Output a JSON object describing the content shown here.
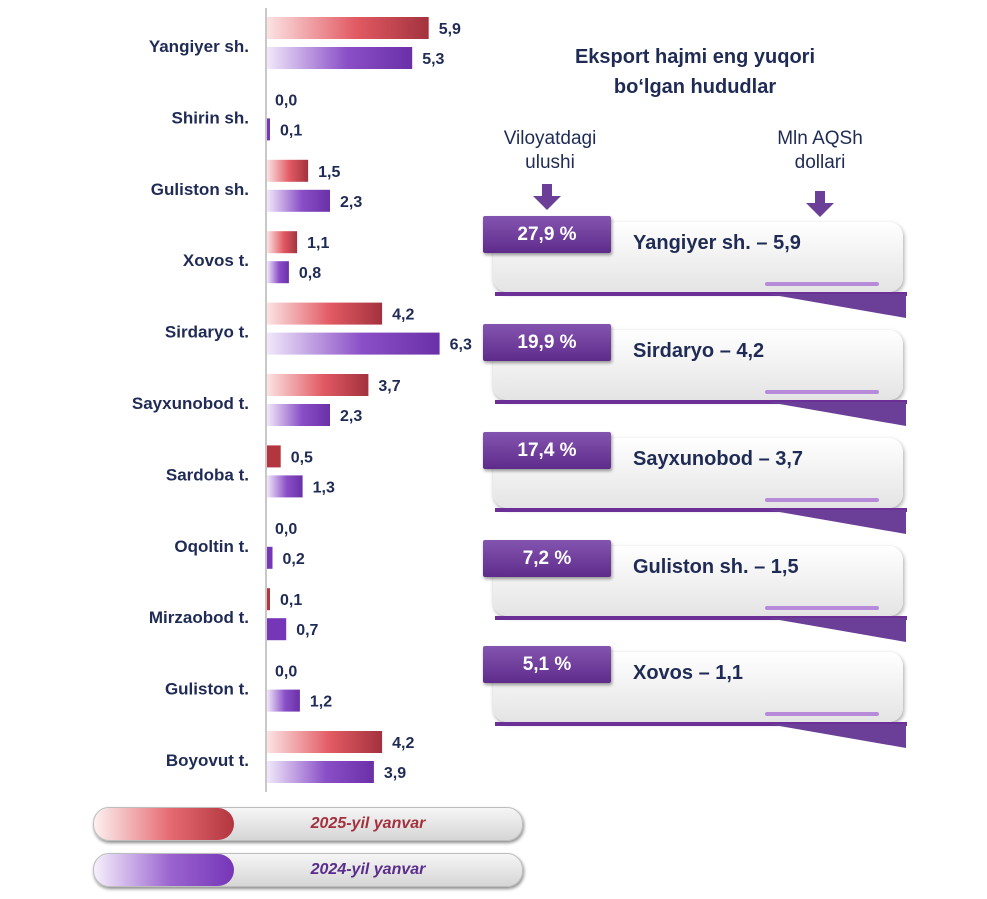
{
  "chart_data": {
    "type": "bar",
    "orientation": "horizontal",
    "categories": [
      "Yangiyer sh.",
      "Shirin sh.",
      "Guliston sh.",
      "Xovos t.",
      "Sirdaryo t.",
      "Sayxunobod t.",
      "Sardoba t.",
      "Oqoltin t.",
      "Mirzaobod t.",
      "Guliston t.",
      "Boyovut t."
    ],
    "series": [
      {
        "name": "2025-yil yanvar",
        "values": [
          5.9,
          0.0,
          1.5,
          1.1,
          4.2,
          3.7,
          0.5,
          0.0,
          0.1,
          0.0,
          4.2
        ],
        "labels": [
          "5,9",
          "0,0",
          "1,5",
          "1,1",
          "4,2",
          "3,7",
          "0,5",
          "0,0",
          "0,1",
          "0,0",
          "4,2"
        ]
      },
      {
        "name": "2024-yil yanvar",
        "values": [
          5.3,
          0.1,
          2.3,
          0.8,
          6.3,
          2.3,
          1.3,
          0.2,
          0.7,
          1.2,
          3.9
        ],
        "labels": [
          "5,3",
          "0,1",
          "2,3",
          "0,8",
          "6,3",
          "2,3",
          "1,3",
          "0,2",
          "0,7",
          "1,2",
          "3,9"
        ]
      }
    ],
    "colors": {
      "series_2025": "#c0394a",
      "series_2024": "#7a3ab8",
      "axis": "#c8c8c8"
    },
    "legend_placement": "bottom-left",
    "grid": false
  },
  "legend": [
    {
      "label": "2025-yil yanvar",
      "color": "#a3323e"
    },
    {
      "label": "2024-yil yanvar",
      "color": "#5a2d8c"
    }
  ],
  "ranking": {
    "title_line1": "Eksport hajmi eng yuqori",
    "title_line2": "bo‘lgan hududlar",
    "col_share_line1": "Viloyatdagi",
    "col_share_line2": "ulushi",
    "col_value_line1": "Mln AQSh",
    "col_value_line2": "dollari",
    "items": [
      {
        "share": "27,9 %",
        "label": "Yangiyer sh. – 5,9"
      },
      {
        "share": "19,9 %",
        "label": "Sirdaryo – 4,2"
      },
      {
        "share": "17,4 %",
        "label": "Sayxunobod – 3,7"
      },
      {
        "share": "7,2 %",
        "label": "Guliston sh. – 1,5"
      },
      {
        "share": "5,1 %",
        "label": "Xovos – 1,1"
      }
    ]
  }
}
